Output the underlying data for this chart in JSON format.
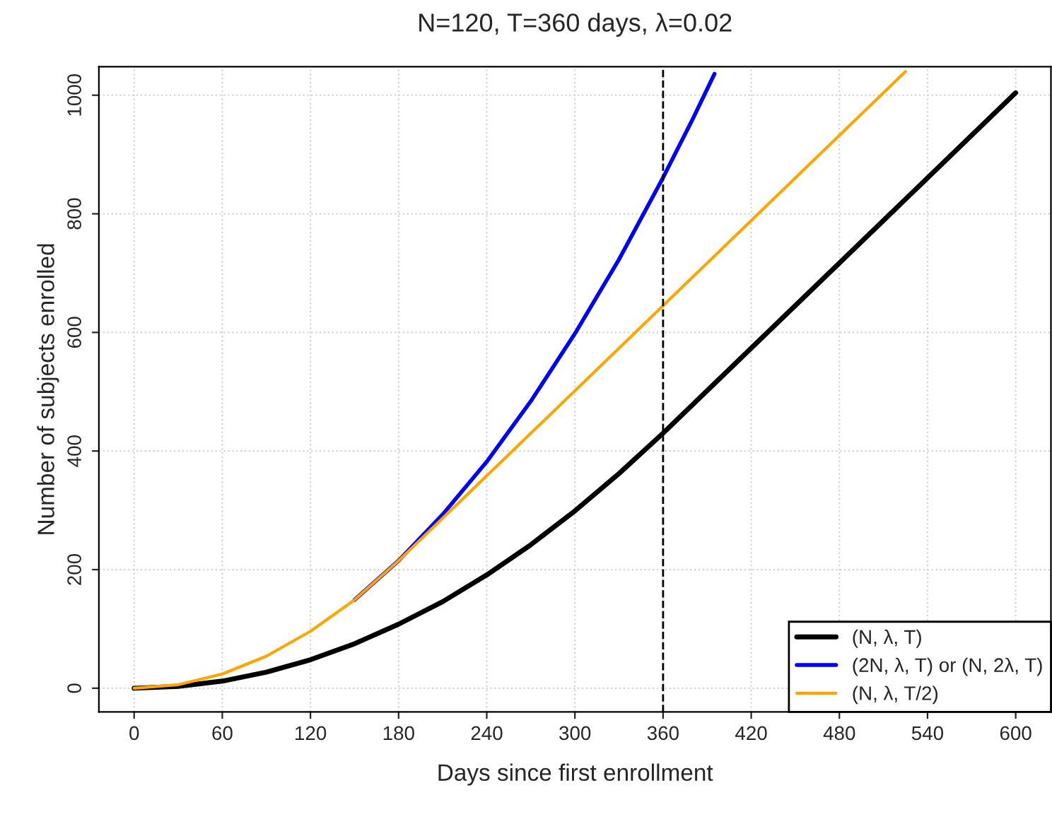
{
  "chart_data": {
    "type": "line",
    "title": "N=120, T=360 days, λ=0.02",
    "xlabel": "Days since first enrollment",
    "ylabel": "Number of subjects enrolled",
    "series": [
      {
        "name": "(N, λ, T)",
        "color": "#000000",
        "x": [
          0,
          30,
          60,
          90,
          120,
          150,
          180,
          210,
          240,
          270,
          300,
          330,
          360,
          600
        ],
        "values": [
          0,
          3,
          12,
          27,
          48,
          75,
          108,
          146,
          191,
          242,
          299,
          362,
          430,
          1004
        ]
      },
      {
        "name": "(2N, λ, T) or (N, 2λ, T)",
        "color": "#0000ff",
        "x": [
          150,
          180,
          210,
          240,
          270,
          300,
          330,
          360,
          380,
          395
        ],
        "values": [
          149,
          215,
          293,
          382,
          484,
          598,
          723,
          861,
          959,
          1036
        ]
      },
      {
        "name": "(N, λ, T/2)",
        "color": "#ffa500",
        "x": [
          0,
          30,
          60,
          90,
          120,
          150,
          180,
          360,
          525
        ],
        "values": [
          0,
          6,
          24,
          54,
          96,
          149,
          215,
          645,
          1040
        ]
      }
    ],
    "xlim": [
      -24,
      624
    ],
    "ylim": [
      -40,
      1048
    ],
    "xticks": [
      0,
      60,
      120,
      180,
      240,
      300,
      360,
      420,
      480,
      540,
      600
    ],
    "yticks": [
      0,
      200,
      400,
      600,
      800,
      1000
    ],
    "ref_lines": [
      {
        "axis": "x",
        "value": 360,
        "color": "#000000",
        "line_style": "dashed"
      }
    ],
    "grid": true,
    "legend": "bottom right",
    "marker": "none",
    "line_style": "solid"
  }
}
